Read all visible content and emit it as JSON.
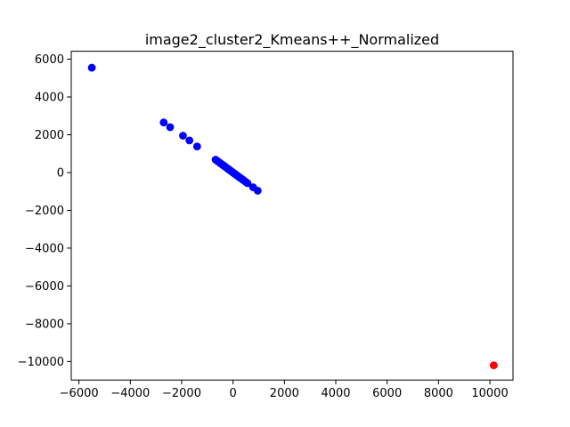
{
  "chart_data": {
    "type": "scatter",
    "title": "image2_cluster2_Kmeans++_Normalized",
    "xlabel": "",
    "ylabel": "",
    "xlim": [
      -6300,
      10900
    ],
    "ylim": [
      -10980,
      6420
    ],
    "xticks": [
      -6000,
      -4000,
      -2000,
      0,
      2000,
      4000,
      6000,
      8000,
      10000
    ],
    "yticks": [
      -10000,
      -8000,
      -6000,
      -4000,
      -2000,
      0,
      2000,
      4000,
      6000
    ],
    "xtick_labels": [
      "−6000",
      "−4000",
      "−2000",
      "0",
      "2000",
      "4000",
      "6000",
      "8000",
      "10000"
    ],
    "ytick_labels": [
      "−10000",
      "−8000",
      "−6000",
      "−4000",
      "−2000",
      "0",
      "2000",
      "4000",
      "6000"
    ],
    "grid": false,
    "series": [
      {
        "color": "#0000ff",
        "points": [
          {
            "x": -5500,
            "y": 5550
          },
          {
            "x": -2700,
            "y": 2650
          },
          {
            "x": -2450,
            "y": 2400
          },
          {
            "x": -1950,
            "y": 1950
          },
          {
            "x": -1700,
            "y": 1700
          },
          {
            "x": -1400,
            "y": 1380
          },
          {
            "x": -680,
            "y": 680
          },
          {
            "x": -620,
            "y": 620
          },
          {
            "x": -560,
            "y": 560
          },
          {
            "x": -500,
            "y": 500
          },
          {
            "x": -440,
            "y": 440
          },
          {
            "x": -380,
            "y": 380
          },
          {
            "x": -320,
            "y": 320
          },
          {
            "x": -260,
            "y": 260
          },
          {
            "x": -200,
            "y": 200
          },
          {
            "x": -150,
            "y": 150
          },
          {
            "x": -100,
            "y": 100
          },
          {
            "x": -50,
            "y": 50
          },
          {
            "x": 0,
            "y": 0
          },
          {
            "x": 50,
            "y": -50
          },
          {
            "x": 100,
            "y": -100
          },
          {
            "x": 150,
            "y": -150
          },
          {
            "x": 200,
            "y": -200
          },
          {
            "x": 260,
            "y": -260
          },
          {
            "x": 320,
            "y": -320
          },
          {
            "x": 380,
            "y": -380
          },
          {
            "x": 440,
            "y": -440
          },
          {
            "x": 500,
            "y": -500
          },
          {
            "x": 560,
            "y": -560
          },
          {
            "x": 780,
            "y": -780
          },
          {
            "x": 960,
            "y": -960
          }
        ]
      },
      {
        "color": "#ff0000",
        "points": [
          {
            "x": 10150,
            "y": -10200
          }
        ]
      }
    ]
  }
}
